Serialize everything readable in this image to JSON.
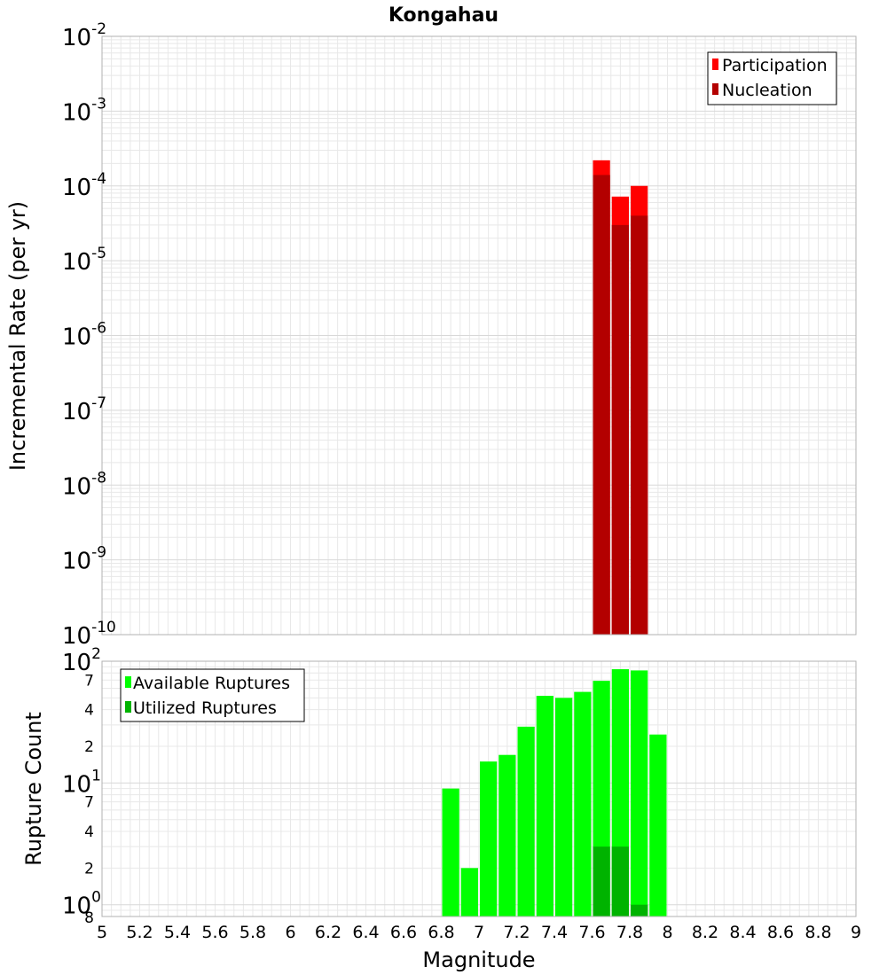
{
  "title": "Kongahau",
  "xlabel": "Magnitude",
  "x_ticks": [
    "5",
    "5.2",
    "5.4",
    "5.6",
    "5.8",
    "6",
    "6.2",
    "6.4",
    "6.6",
    "6.8",
    "7",
    "7.2",
    "7.4",
    "7.6",
    "7.8",
    "8",
    "8.2",
    "8.4",
    "8.6",
    "8.8",
    "9"
  ],
  "colors": {
    "participation": "#ff0000",
    "nucleation": "#b30000",
    "available": "#00ff00",
    "utilized": "#00b300",
    "grid": "#e8e8e8",
    "frame": "#b0b0b0"
  },
  "chart_data": [
    {
      "type": "bar",
      "title": "Kongahau",
      "xlabel": "Magnitude",
      "ylabel": "Incremental Rate (per yr)",
      "yscale": "log",
      "xlim": [
        5,
        9
      ],
      "ylim": [
        1e-10,
        0.01
      ],
      "y_major_ticks": [
        {
          "base": "10",
          "exp": "-10"
        },
        {
          "base": "10",
          "exp": "-9"
        },
        {
          "base": "10",
          "exp": "-8"
        },
        {
          "base": "10",
          "exp": "-7"
        },
        {
          "base": "10",
          "exp": "-6"
        },
        {
          "base": "10",
          "exp": "-5"
        },
        {
          "base": "10",
          "exp": "-4"
        },
        {
          "base": "10",
          "exp": "-3"
        },
        {
          "base": "10",
          "exp": "-2"
        }
      ],
      "grid": true,
      "legend_position": "top-right",
      "series": [
        {
          "name": "Participation",
          "color": "#ff0000",
          "x": [
            7.65,
            7.75,
            7.85
          ],
          "values": [
            0.00022,
            7.2e-05,
            0.0001
          ]
        },
        {
          "name": "Nucleation",
          "color": "#b30000",
          "x": [
            7.65,
            7.75,
            7.85
          ],
          "values": [
            0.00014,
            3e-05,
            4e-05
          ]
        }
      ]
    },
    {
      "type": "bar",
      "xlabel": "Magnitude",
      "ylabel": "Rupture Count",
      "yscale": "log",
      "xlim": [
        5,
        9
      ],
      "ylim": [
        0.8,
        100
      ],
      "y_major_ticks": [
        {
          "base": "10",
          "exp": "0"
        },
        {
          "base": "10",
          "exp": "1"
        },
        {
          "base": "10",
          "exp": "2"
        }
      ],
      "y_minor_labels": [
        {
          "label": "8",
          "value": 0.8
        },
        {
          "label": "2",
          "value": 2
        },
        {
          "label": "4",
          "value": 4
        },
        {
          "label": "7",
          "value": 7
        },
        {
          "label": "2",
          "value": 20
        },
        {
          "label": "4",
          "value": 40
        },
        {
          "label": "7",
          "value": 70
        }
      ],
      "grid": true,
      "legend_position": "top-left",
      "series": [
        {
          "name": "Available Ruptures",
          "color": "#00ff00",
          "x": [
            6.85,
            6.95,
            7.05,
            7.15,
            7.25,
            7.35,
            7.45,
            7.55,
            7.65,
            7.75,
            7.85,
            7.95
          ],
          "values": [
            9,
            2,
            15,
            17,
            29,
            52,
            50,
            56,
            69,
            86,
            84,
            25
          ]
        },
        {
          "name": "Utilized Ruptures",
          "color": "#00b300",
          "x": [
            7.65,
            7.75,
            7.85
          ],
          "values": [
            3,
            3,
            1
          ]
        }
      ]
    }
  ]
}
